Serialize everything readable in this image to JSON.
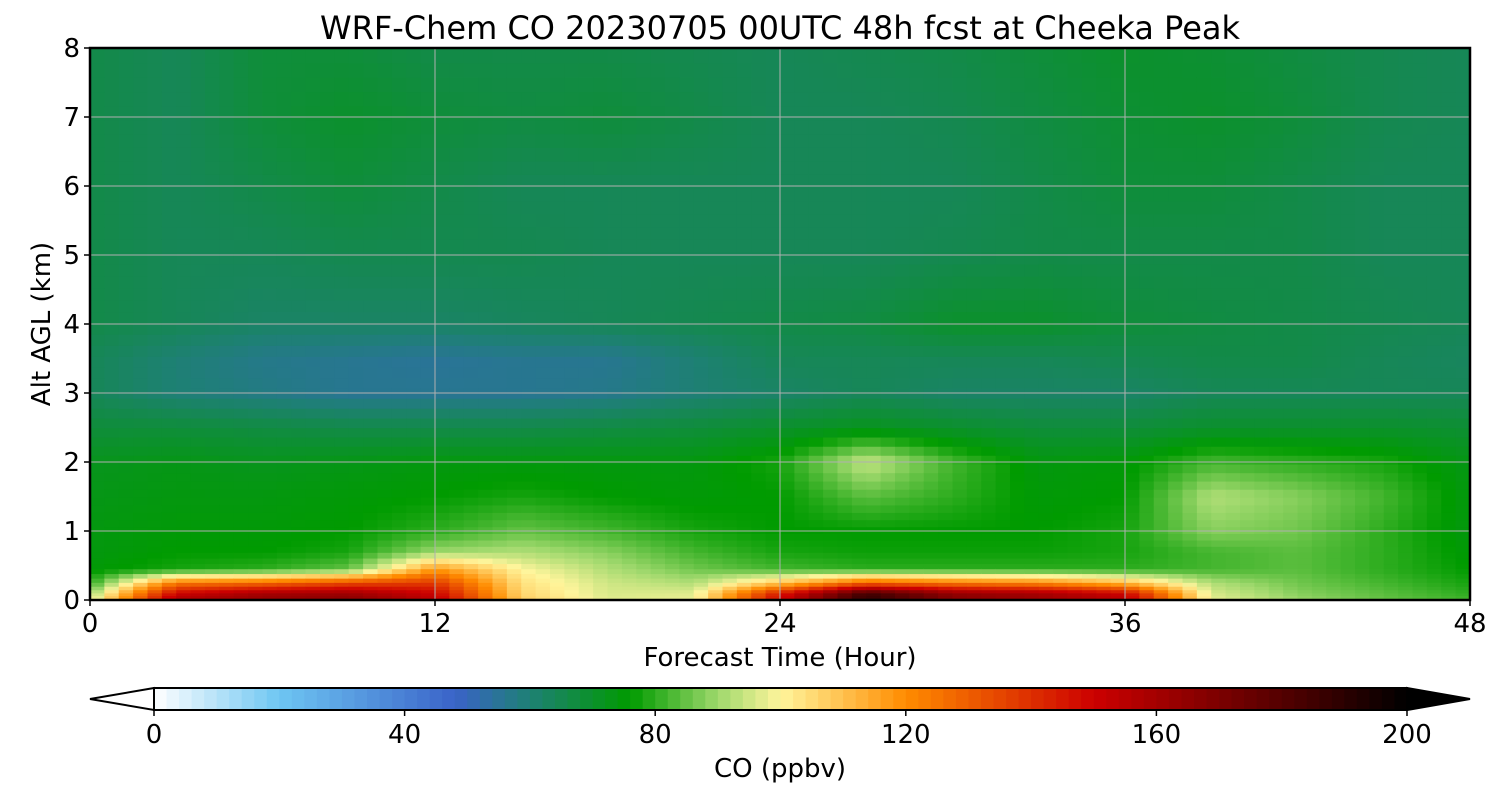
{
  "chart_data": {
    "type": "heatmap",
    "title": "WRF-Chem CO  20230705 00UTC 48h fcst at Cheeka Peak",
    "xlabel": "Forecast Time (Hour)",
    "ylabel": "Alt AGL (km)",
    "xlim": [
      0,
      48
    ],
    "ylim": [
      0,
      8
    ],
    "xticks": [
      0,
      12,
      24,
      36,
      48
    ],
    "yticks": [
      0,
      1,
      2,
      3,
      4,
      5,
      6,
      7,
      8
    ],
    "grid": true,
    "z_units": "CO  (ppbv)",
    "x": [
      0,
      3,
      6,
      9,
      12,
      15,
      18,
      21,
      24,
      27,
      30,
      33,
      36,
      39,
      42,
      45,
      48
    ],
    "y": [
      0,
      0.1,
      0.25,
      0.45,
      0.7,
      1.0,
      1.5,
      2.0,
      2.5,
      3.0,
      3.5,
      4.0,
      5.0,
      6.0,
      7.0,
      8.0
    ],
    "z": [
      [
        95,
        160,
        165,
        168,
        155,
        108,
        97,
        98,
        150,
        190,
        168,
        162,
        155,
        98,
        90,
        85,
        82
      ],
      [
        90,
        150,
        160,
        162,
        150,
        106,
        96,
        97,
        145,
        185,
        165,
        160,
        150,
        96,
        88,
        84,
        80
      ],
      [
        80,
        125,
        128,
        135,
        138,
        104,
        95,
        92,
        110,
        130,
        125,
        122,
        112,
        92,
        86,
        82,
        78
      ],
      [
        75,
        78,
        80,
        85,
        118,
        100,
        92,
        86,
        82,
        80,
        80,
        80,
        80,
        82,
        84,
        80,
        76
      ],
      [
        74,
        76,
        76,
        78,
        90,
        92,
        88,
        82,
        78,
        77,
        77,
        77,
        78,
        82,
        84,
        80,
        75
      ],
      [
        74,
        75,
        75,
        76,
        80,
        85,
        82,
        78,
        76,
        76,
        76,
        76,
        78,
        88,
        86,
        80,
        74
      ],
      [
        73,
        74,
        74,
        75,
        76,
        78,
        76,
        75,
        76,
        84,
        80,
        75,
        76,
        92,
        88,
        82,
        74
      ],
      [
        72,
        73,
        72,
        73,
        74,
        74,
        74,
        74,
        78,
        94,
        82,
        74,
        75,
        82,
        80,
        78,
        73
      ],
      [
        68,
        68,
        67,
        66,
        66,
        66,
        67,
        68,
        70,
        72,
        70,
        68,
        68,
        70,
        70,
        70,
        69
      ],
      [
        64,
        60,
        58,
        56,
        56,
        56,
        57,
        60,
        62,
        64,
        62,
        62,
        62,
        64,
        64,
        64,
        64
      ],
      [
        64,
        60,
        57,
        56,
        55,
        56,
        56,
        60,
        64,
        64,
        64,
        64,
        65,
        66,
        66,
        64,
        63
      ],
      [
        66,
        64,
        62,
        62,
        62,
        63,
        64,
        65,
        66,
        67,
        70,
        70,
        68,
        67,
        66,
        65,
        64
      ],
      [
        66,
        64,
        64,
        65,
        65,
        65,
        64,
        64,
        64,
        64,
        65,
        66,
        66,
        66,
        66,
        64,
        64
      ],
      [
        66,
        64,
        66,
        68,
        66,
        64,
        64,
        64,
        64,
        64,
        64,
        66,
        68,
        68,
        66,
        64,
        64
      ],
      [
        66,
        64,
        68,
        70,
        68,
        67,
        68,
        66,
        64,
        64,
        65,
        67,
        69,
        70,
        68,
        65,
        64
      ],
      [
        66,
        64,
        68,
        68,
        66,
        66,
        66,
        65,
        64,
        65,
        66,
        68,
        70,
        69,
        67,
        65,
        64
      ]
    ],
    "colorbar": {
      "min": 0,
      "max": 200,
      "ticks": [
        0,
        40,
        80,
        120,
        160,
        200
      ],
      "label": "CO  (ppbv)",
      "extend": "both",
      "stops": [
        {
          "v": 0,
          "c": "#ffffff"
        },
        {
          "v": 20,
          "c": "#6ec6f2"
        },
        {
          "v": 48,
          "c": "#3a63c8"
        },
        {
          "v": 60,
          "c": "#1e8074"
        },
        {
          "v": 76,
          "c": "#009b00"
        },
        {
          "v": 90,
          "c": "#9ed86c"
        },
        {
          "v": 100,
          "c": "#fff59c"
        },
        {
          "v": 120,
          "c": "#ff8c00"
        },
        {
          "v": 150,
          "c": "#cc0000"
        },
        {
          "v": 185,
          "c": "#400000"
        },
        {
          "v": 200,
          "c": "#000000"
        }
      ]
    }
  }
}
